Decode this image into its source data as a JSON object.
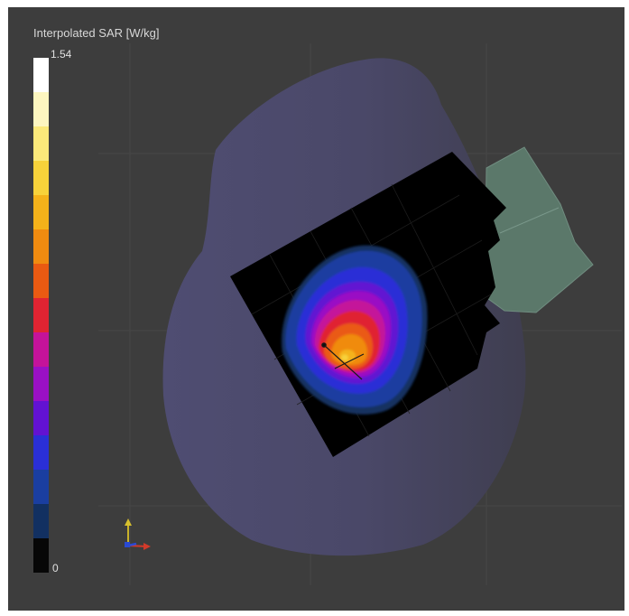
{
  "legend": {
    "title": "Interpolated SAR [W/kg]",
    "max_label": "1.54",
    "min_label": "0",
    "colors_top_to_bottom": [
      "#ffffff",
      "#fdf6c0",
      "#fbe97a",
      "#f7d23a",
      "#f4b21a",
      "#f08b10",
      "#ea5a12",
      "#e02432",
      "#c4139a",
      "#9a10c4",
      "#6212d2",
      "#2a2fd6",
      "#1a3ea0",
      "#123061",
      "#070707"
    ]
  },
  "colors": {
    "background": "#3d3d3d",
    "phantom": "#4a4868",
    "device": "#5d7a6c",
    "sensor_plane": "#000000"
  }
}
